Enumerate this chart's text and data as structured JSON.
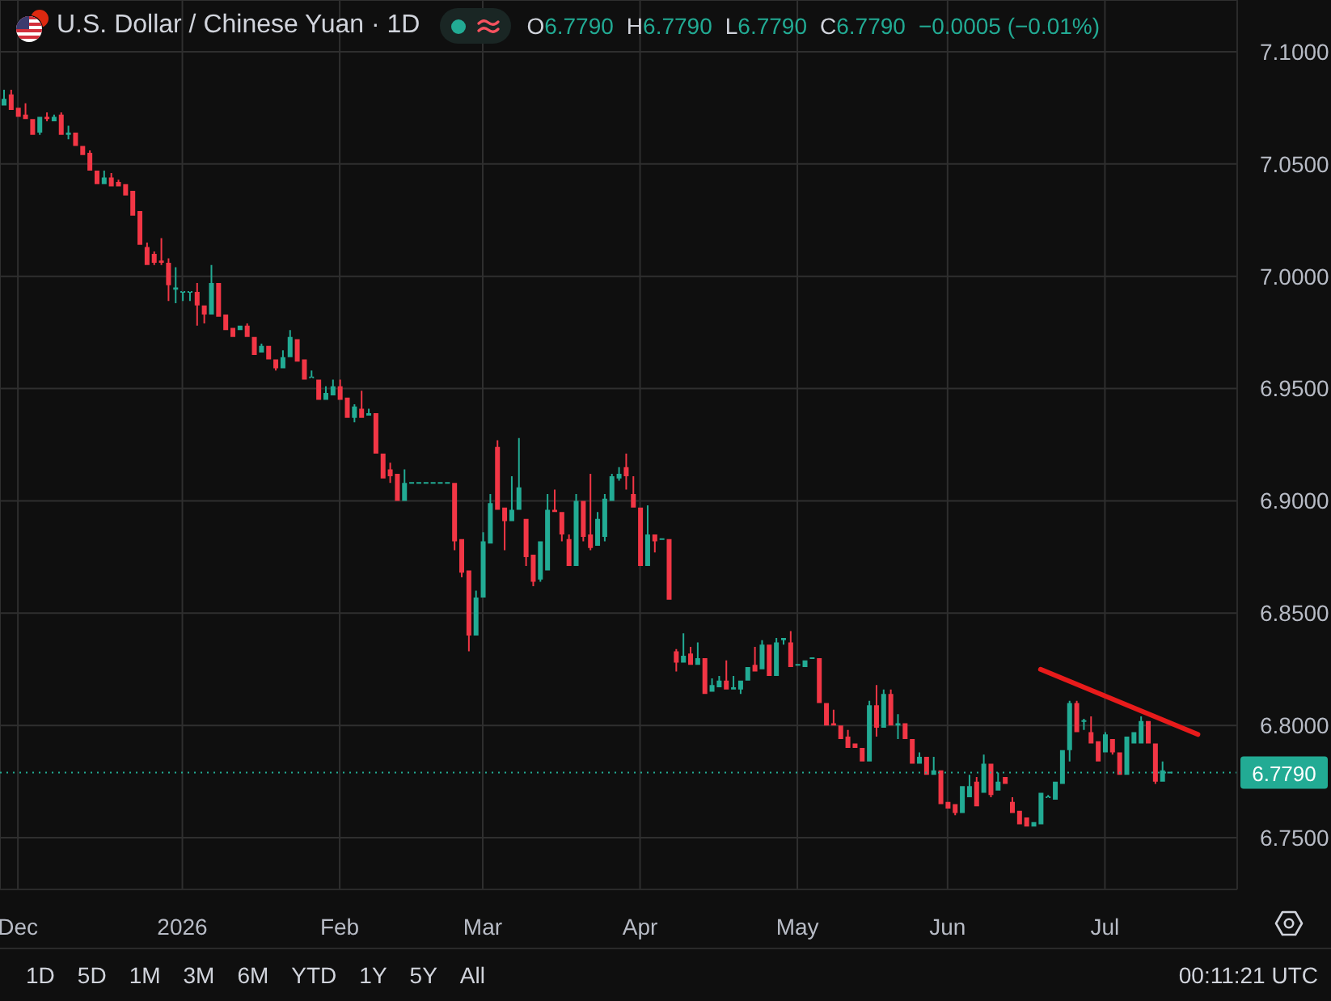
{
  "chart_data": {
    "type": "candlestick",
    "title": "U.S. Dollar / Chinese Yuan · 1D",
    "categories": [
      null,
      null,
      "Dec",
      null,
      null,
      null,
      null,
      null,
      null,
      null,
      null,
      null,
      null,
      null,
      null,
      null,
      null,
      null,
      null,
      null,
      null,
      null,
      null,
      null,
      null,
      "2026",
      null,
      null,
      null,
      null,
      null,
      null,
      null,
      null,
      null,
      null,
      null,
      null,
      null,
      null,
      null,
      null,
      null,
      null,
      null,
      null,
      null,
      "Feb",
      null,
      null,
      null,
      null,
      null,
      null,
      null,
      null,
      null,
      null,
      null,
      null,
      null,
      null,
      null,
      null,
      null,
      null,
      null,
      "Mar",
      null,
      null,
      null,
      null,
      null,
      null,
      null,
      null,
      null,
      null,
      null,
      null,
      null,
      null,
      null,
      null,
      null,
      null,
      null,
      null,
      null,
      "Apr",
      null,
      null,
      null,
      null,
      null,
      null,
      null,
      null,
      null,
      null,
      null,
      null,
      null,
      null,
      null,
      null,
      null,
      null,
      null,
      null,
      null,
      "May",
      null,
      null,
      null,
      null,
      null,
      null,
      null,
      null,
      null,
      null,
      null,
      null,
      null,
      null,
      null,
      null,
      null,
      null,
      null,
      null,
      "Jun",
      null,
      null,
      null,
      null,
      null,
      null,
      null,
      null,
      null,
      null,
      null,
      null,
      null,
      null,
      null,
      null,
      null,
      null,
      null,
      null,
      null,
      "Jul",
      null,
      null,
      null,
      null,
      null,
      null,
      null,
      null,
      null,
      null,
      null,
      null,
      null,
      null,
      null,
      null,
      null,
      null
    ],
    "ohlc": [
      [
        7.076,
        7.083,
        7.076,
        7.079
      ],
      [
        7.081,
        7.083,
        7.074,
        7.074
      ],
      [
        7.075,
        7.075,
        7.071,
        7.071
      ],
      [
        7.072,
        7.077,
        7.07,
        7.07
      ],
      [
        7.07,
        7.07,
        7.063,
        7.063
      ],
      [
        7.064,
        7.071,
        7.063,
        7.071
      ],
      [
        7.071,
        7.073,
        7.069,
        7.07
      ],
      [
        7.069,
        7.072,
        7.069,
        7.071
      ],
      [
        7.072,
        7.073,
        7.063,
        7.063
      ],
      [
        7.063,
        7.067,
        7.061,
        7.064
      ],
      [
        7.064,
        7.064,
        7.058,
        7.058
      ],
      [
        7.058,
        7.058,
        7.054,
        7.054
      ],
      [
        7.055,
        7.056,
        7.047,
        7.047
      ],
      [
        7.047,
        7.047,
        7.041,
        7.041
      ],
      [
        7.041,
        7.047,
        7.041,
        7.044
      ],
      [
        7.044,
        7.046,
        7.04,
        7.04
      ],
      [
        7.042,
        7.043,
        7.04,
        7.04
      ],
      [
        7.041,
        7.041,
        7.036,
        7.036
      ],
      [
        7.038,
        7.038,
        7.027,
        7.027
      ],
      [
        7.029,
        7.029,
        7.014,
        7.014
      ],
      [
        7.013,
        7.015,
        7.005,
        7.005
      ],
      [
        7.01,
        7.011,
        7.005,
        7.006
      ],
      [
        7.007,
        7.017,
        7.005,
        7.006
      ],
      [
        7.006,
        7.008,
        6.989,
        6.996
      ],
      [
        6.994,
        7.004,
        6.988,
        6.995
      ],
      [
        6.993,
        6.993,
        6.989,
        6.993
      ],
      [
        6.993,
        6.993,
        6.989,
        6.993
      ],
      [
        6.993,
        6.997,
        6.978,
        6.987
      ],
      [
        6.987,
        6.987,
        6.979,
        6.983
      ],
      [
        6.983,
        7.005,
        6.983,
        6.997
      ],
      [
        6.997,
        6.997,
        6.982,
        6.982
      ],
      [
        6.983,
        6.983,
        6.976,
        6.976
      ],
      [
        6.977,
        6.977,
        6.973,
        6.973
      ],
      [
        6.976,
        6.978,
        6.976,
        6.978
      ],
      [
        6.978,
        6.979,
        6.973,
        6.973
      ],
      [
        6.973,
        6.973,
        6.965,
        6.965
      ],
      [
        6.966,
        6.97,
        6.966,
        6.969
      ],
      [
        6.969,
        6.969,
        6.963,
        6.963
      ],
      [
        6.963,
        6.963,
        6.958,
        6.959
      ],
      [
        6.959,
        6.967,
        6.959,
        6.964
      ],
      [
        6.964,
        6.976,
        6.964,
        6.973
      ],
      [
        6.972,
        6.972,
        6.962,
        6.962
      ],
      [
        6.963,
        6.963,
        6.954,
        6.954
      ],
      [
        6.955,
        6.958,
        6.955,
        6.955
      ],
      [
        6.954,
        6.954,
        6.945,
        6.945
      ],
      [
        6.945,
        6.951,
        6.945,
        6.948
      ],
      [
        6.947,
        6.954,
        6.947,
        6.951
      ],
      [
        6.951,
        6.954,
        6.945,
        6.945
      ],
      [
        6.946,
        6.946,
        6.937,
        6.937
      ],
      [
        6.937,
        6.943,
        6.935,
        6.942
      ],
      [
        6.941,
        6.949,
        6.937,
        6.937
      ],
      [
        6.938,
        6.941,
        6.938,
        6.939
      ],
      [
        6.939,
        6.939,
        6.921,
        6.921
      ],
      [
        6.921,
        6.921,
        6.91,
        6.91
      ],
      [
        6.914,
        6.917,
        6.908,
        6.911
      ],
      [
        6.912,
        6.912,
        6.9,
        6.9
      ],
      [
        6.9,
        6.914,
        6.9,
        6.908
      ],
      [
        6.908,
        6.908,
        6.908,
        6.908
      ],
      [
        6.908,
        6.908,
        6.908,
        6.908
      ],
      [
        6.908,
        6.908,
        6.908,
        6.908
      ],
      [
        6.908,
        6.908,
        6.908,
        6.908
      ],
      [
        6.908,
        6.908,
        6.908,
        6.908
      ],
      [
        6.908,
        6.908,
        6.908,
        6.908
      ],
      [
        6.908,
        6.908,
        6.878,
        6.882
      ],
      [
        6.883,
        6.883,
        6.866,
        6.868
      ],
      [
        6.869,
        6.869,
        6.833,
        6.84
      ],
      [
        6.84,
        6.86,
        6.84,
        6.857
      ],
      [
        6.857,
        6.886,
        6.857,
        6.882
      ],
      [
        6.881,
        6.903,
        6.881,
        6.899
      ],
      [
        6.924,
        6.927,
        6.896,
        6.896
      ],
      [
        6.897,
        6.897,
        6.878,
        6.891
      ],
      [
        6.891,
        6.911,
        6.891,
        6.896
      ],
      [
        6.896,
        6.928,
        6.896,
        6.906
      ],
      [
        6.892,
        6.892,
        6.871,
        6.875
      ],
      [
        6.876,
        6.876,
        6.862,
        6.864
      ],
      [
        6.865,
        6.882,
        6.864,
        6.882
      ],
      [
        6.869,
        6.903,
        6.869,
        6.896
      ],
      [
        6.896,
        6.905,
        6.895,
        6.895
      ],
      [
        6.895,
        6.895,
        6.882,
        6.885
      ],
      [
        6.883,
        6.885,
        6.871,
        6.871
      ],
      [
        6.871,
        6.903,
        6.871,
        6.9
      ],
      [
        6.9,
        6.9,
        6.882,
        6.884
      ],
      [
        6.885,
        6.912,
        6.878,
        6.879
      ],
      [
        6.88,
        6.895,
        6.88,
        6.892
      ],
      [
        6.884,
        6.903,
        6.882,
        6.901
      ],
      [
        6.9,
        6.912,
        6.9,
        6.911
      ],
      [
        6.91,
        6.915,
        6.909,
        6.912
      ],
      [
        6.915,
        6.921,
        6.905,
        6.911
      ],
      [
        6.903,
        6.911,
        6.897,
        6.897
      ],
      [
        6.897,
        6.897,
        6.871,
        6.871
      ],
      [
        6.871,
        6.898,
        6.871,
        6.885
      ],
      [
        6.885,
        6.885,
        6.877,
        6.882
      ],
      [
        6.883,
        6.883,
        6.883,
        6.883
      ],
      [
        6.883,
        6.883,
        6.856,
        6.856
      ],
      [
        6.833,
        6.834,
        6.824,
        6.828
      ],
      [
        6.828,
        6.841,
        6.828,
        6.831
      ],
      [
        6.832,
        6.835,
        6.827,
        6.827
      ],
      [
        6.827,
        6.837,
        6.827,
        6.83
      ],
      [
        6.83,
        6.83,
        6.814,
        6.814
      ],
      [
        6.815,
        6.821,
        6.815,
        6.818
      ],
      [
        6.817,
        6.822,
        6.817,
        6.82
      ],
      [
        6.82,
        6.829,
        6.816,
        6.816
      ],
      [
        6.816,
        6.822,
        6.816,
        6.817
      ],
      [
        6.816,
        6.82,
        6.814,
        6.82
      ],
      [
        6.82,
        6.826,
        6.82,
        6.826
      ],
      [
        6.827,
        6.835,
        6.824,
        6.824
      ],
      [
        6.825,
        6.838,
        6.825,
        6.836
      ],
      [
        6.836,
        6.836,
        6.822,
        6.822
      ],
      [
        6.822,
        6.839,
        6.822,
        6.837
      ],
      [
        6.838,
        6.839,
        6.836,
        6.839
      ],
      [
        6.837,
        6.842,
        6.826,
        6.826
      ],
      [
        6.827,
        6.827,
        6.827,
        6.827
      ],
      [
        6.826,
        6.829,
        6.826,
        6.829
      ],
      [
        6.83,
        6.83,
        6.83,
        6.83
      ],
      [
        6.83,
        6.83,
        6.81,
        6.81
      ],
      [
        6.81,
        6.81,
        6.8,
        6.8
      ],
      [
        6.801,
        6.807,
        6.8,
        6.8
      ],
      [
        6.8,
        6.8,
        6.794,
        6.794
      ],
      [
        6.795,
        6.798,
        6.79,
        6.79
      ],
      [
        6.792,
        6.792,
        6.79,
        6.79
      ],
      [
        6.79,
        6.79,
        6.784,
        6.784
      ],
      [
        6.784,
        6.811,
        6.784,
        6.809
      ],
      [
        6.809,
        6.818,
        6.795,
        6.799
      ],
      [
        6.799,
        6.816,
        6.799,
        6.814
      ],
      [
        6.814,
        6.816,
        6.8,
        6.8
      ],
      [
        6.8,
        6.805,
        6.794,
        6.801
      ],
      [
        6.801,
        6.801,
        6.794,
        6.794
      ],
      [
        6.794,
        6.794,
        6.783,
        6.783
      ],
      [
        6.783,
        6.788,
        6.783,
        6.786
      ],
      [
        6.786,
        6.786,
        6.778,
        6.778
      ],
      [
        6.778,
        6.786,
        6.778,
        6.78
      ],
      [
        6.78,
        6.78,
        6.765,
        6.765
      ],
      [
        6.766,
        6.766,
        6.763,
        6.763
      ],
      [
        6.765,
        6.765,
        6.76,
        6.761
      ],
      [
        6.761,
        6.773,
        6.761,
        6.773
      ],
      [
        6.768,
        6.778,
        6.768,
        6.773
      ],
      [
        6.775,
        6.777,
        6.764,
        6.764
      ],
      [
        6.77,
        6.787,
        6.77,
        6.783
      ],
      [
        6.783,
        6.783,
        6.768,
        6.769
      ],
      [
        6.771,
        6.779,
        6.771,
        6.775
      ],
      [
        6.777,
        6.777,
        6.774,
        6.774
      ],
      [
        6.766,
        6.768,
        6.761,
        6.761
      ],
      [
        6.762,
        6.762,
        6.756,
        6.756
      ],
      [
        6.759,
        6.759,
        6.755,
        6.755
      ],
      [
        6.755,
        6.757,
        6.755,
        6.757
      ],
      [
        6.756,
        6.77,
        6.756,
        6.77
      ],
      [
        6.768,
        6.769,
        6.768,
        6.768
      ],
      [
        6.767,
        6.775,
        6.767,
        6.775
      ],
      [
        6.774,
        6.789,
        6.774,
        6.789
      ],
      [
        6.789,
        6.811,
        6.784,
        6.81
      ],
      [
        6.81,
        6.811,
        6.797,
        6.797
      ],
      [
        6.802,
        6.803,
        6.798,
        6.802
      ],
      [
        6.797,
        6.804,
        6.792,
        6.792
      ],
      [
        6.793,
        6.793,
        6.784,
        6.784
      ],
      [
        6.788,
        6.797,
        6.788,
        6.796
      ],
      [
        6.794,
        6.794,
        6.787,
        6.788
      ],
      [
        6.788,
        6.788,
        6.778,
        6.778
      ],
      [
        6.778,
        6.795,
        6.778,
        6.795
      ],
      [
        6.792,
        6.797,
        6.792,
        6.797
      ],
      [
        6.792,
        6.804,
        6.792,
        6.802
      ],
      [
        6.802,
        6.802,
        6.792,
        6.792
      ],
      [
        6.792,
        6.792,
        6.774,
        6.775
      ],
      [
        6.775,
        6.784,
        6.775,
        6.78
      ],
      [
        6.779,
        6.779,
        6.779,
        6.779
      ],
      null,
      null,
      null,
      null,
      null,
      null,
      null,
      null,
      null
    ],
    "colors": [
      "#22ab94",
      "#f23645",
      "#f23645",
      "#f23645",
      "#f23645",
      "#22ab94",
      "#f23645",
      "#22ab94",
      "#f23645",
      "#22ab94",
      "#f23645",
      "#f23645",
      "#f23645",
      "#f23645",
      "#22ab94",
      "#f23645",
      "#f23645",
      "#f23645",
      "#f23645",
      "#f23645",
      "#f23645",
      "#f23645",
      "#f23645",
      "#f23645",
      "#22ab94",
      "#22ab94",
      "#22ab94",
      "#f23645",
      "#f23645",
      "#22ab94",
      "#f23645",
      "#f23645",
      "#f23645",
      "#22ab94",
      "#f23645",
      "#f23645",
      "#22ab94",
      "#f23645",
      "#f23645",
      "#22ab94",
      "#22ab94",
      "#f23645",
      "#f23645",
      "#22ab94",
      "#f23645",
      "#22ab94",
      "#22ab94",
      "#f23645",
      "#f23645",
      "#22ab94",
      "#f23645",
      "#22ab94",
      "#f23645",
      "#f23645",
      "#f23645",
      "#f23645",
      "#22ab94",
      "#22ab94",
      "#22ab94",
      "#22ab94",
      "#22ab94",
      "#22ab94",
      "#22ab94",
      "#f23645",
      "#f23645",
      "#f23645",
      "#22ab94",
      "#22ab94",
      "#22ab94",
      "#f23645",
      "#f23645",
      "#22ab94",
      "#22ab94",
      "#f23645",
      "#f23645",
      "#22ab94",
      "#22ab94",
      "#f23645",
      "#f23645",
      "#f23645",
      "#22ab94",
      "#f23645",
      "#f23645",
      "#22ab94",
      "#22ab94",
      "#22ab94",
      "#22ab94",
      "#f23645",
      "#f23645",
      "#f23645",
      "#22ab94",
      "#f23645",
      "#22ab94",
      "#f23645",
      "#f23645",
      "#22ab94",
      "#f23645",
      "#22ab94",
      "#f23645",
      "#22ab94",
      "#22ab94",
      "#f23645",
      "#22ab94",
      "#22ab94",
      "#22ab94",
      "#f23645",
      "#22ab94",
      "#f23645",
      "#22ab94",
      "#22ab94",
      "#f23645",
      "#22ab94",
      "#22ab94",
      "#22ab94",
      "#f23645",
      "#f23645",
      "#f23645",
      "#f23645",
      "#f23645",
      "#f23645",
      "#f23645",
      "#22ab94",
      "#f23645",
      "#22ab94",
      "#f23645",
      "#22ab94",
      "#f23645",
      "#f23645",
      "#22ab94",
      "#f23645",
      "#22ab94",
      "#f23645",
      "#f23645",
      "#f23645",
      "#22ab94",
      "#22ab94",
      "#f23645",
      "#22ab94",
      "#f23645",
      "#22ab94",
      "#f23645",
      "#f23645",
      "#f23645",
      "#f23645",
      "#22ab94",
      "#22ab94",
      "#22ab94",
      "#22ab94",
      "#22ab94",
      "#22ab94",
      "#f23645",
      "#22ab94",
      "#f23645",
      "#f23645",
      "#22ab94",
      "#f23645",
      "#f23645",
      "#22ab94",
      "#22ab94",
      "#22ab94",
      "#f23645",
      "#f23645",
      "#22ab94",
      "#22ab94",
      null,
      null,
      null,
      null,
      null,
      null,
      null,
      null,
      null
    ],
    "series": [
      {
        "type": "line",
        "color": "#e81b1b",
        "values": [
          null,
          null,
          null,
          null,
          null,
          null,
          null,
          null,
          null,
          null,
          null,
          null,
          null,
          null,
          null,
          null,
          null,
          null,
          null,
          null,
          null,
          null,
          null,
          null,
          null,
          null,
          null,
          null,
          null,
          null,
          null,
          null,
          null,
          null,
          null,
          null,
          null,
          null,
          null,
          null,
          null,
          null,
          null,
          null,
          null,
          null,
          null,
          null,
          null,
          null,
          null,
          null,
          null,
          null,
          null,
          null,
          null,
          null,
          null,
          null,
          null,
          null,
          null,
          null,
          null,
          null,
          null,
          null,
          null,
          null,
          null,
          null,
          null,
          null,
          null,
          null,
          null,
          null,
          null,
          null,
          null,
          null,
          null,
          null,
          null,
          null,
          null,
          null,
          null,
          null,
          null,
          null,
          null,
          null,
          null,
          null,
          null,
          null,
          null,
          null,
          null,
          null,
          null,
          null,
          null,
          null,
          null,
          null,
          null,
          null,
          null,
          null,
          null,
          null,
          null,
          null,
          null,
          null,
          null,
          null,
          null,
          null,
          null,
          null,
          null,
          null,
          null,
          null,
          null,
          null,
          null,
          null,
          null,
          null,
          null,
          null,
          null,
          null,
          null,
          null,
          null,
          null,
          null,
          null,
          null,
          6.825,
          null,
          null,
          null,
          null,
          null,
          null,
          null,
          null,
          null,
          null,
          null,
          null,
          null,
          null,
          null,
          null,
          null,
          null,
          null,
          null,
          null,
          6.796,
          null,
          null,
          null,
          null,
          null
        ]
      }
    ],
    "ylim": [
      6.727,
      7.123
    ],
    "yticks": [
      {
        "value": 6.75,
        "label": "6.7500"
      },
      {
        "value": 6.8,
        "label": "6.8000"
      },
      {
        "value": 6.85,
        "label": "6.8500"
      },
      {
        "value": 6.9,
        "label": "6.9000"
      },
      {
        "value": 6.95,
        "label": "6.9500"
      },
      {
        "value": 7.0,
        "label": "7.0000"
      },
      {
        "value": 7.05,
        "label": "7.0500"
      },
      {
        "value": 7.1,
        "label": "7.1000"
      }
    ],
    "grid": true,
    "ref_lines": [
      {
        "axis": "y",
        "value": 6.779,
        "label": "6.7790",
        "color": "#22ab94",
        "line_style": "dotted"
      }
    ],
    "annotations": [
      "O",
      "6.7790",
      "H",
      "6.7790",
      "L",
      "6.7790",
      "C",
      "6.7790",
      "−0.0005 (−0.01%)",
      "1D",
      "5D",
      "1M",
      "3M",
      "6M",
      "YTD",
      "1Y",
      "5Y",
      "All",
      "00:11:21 UTC"
    ]
  }
}
